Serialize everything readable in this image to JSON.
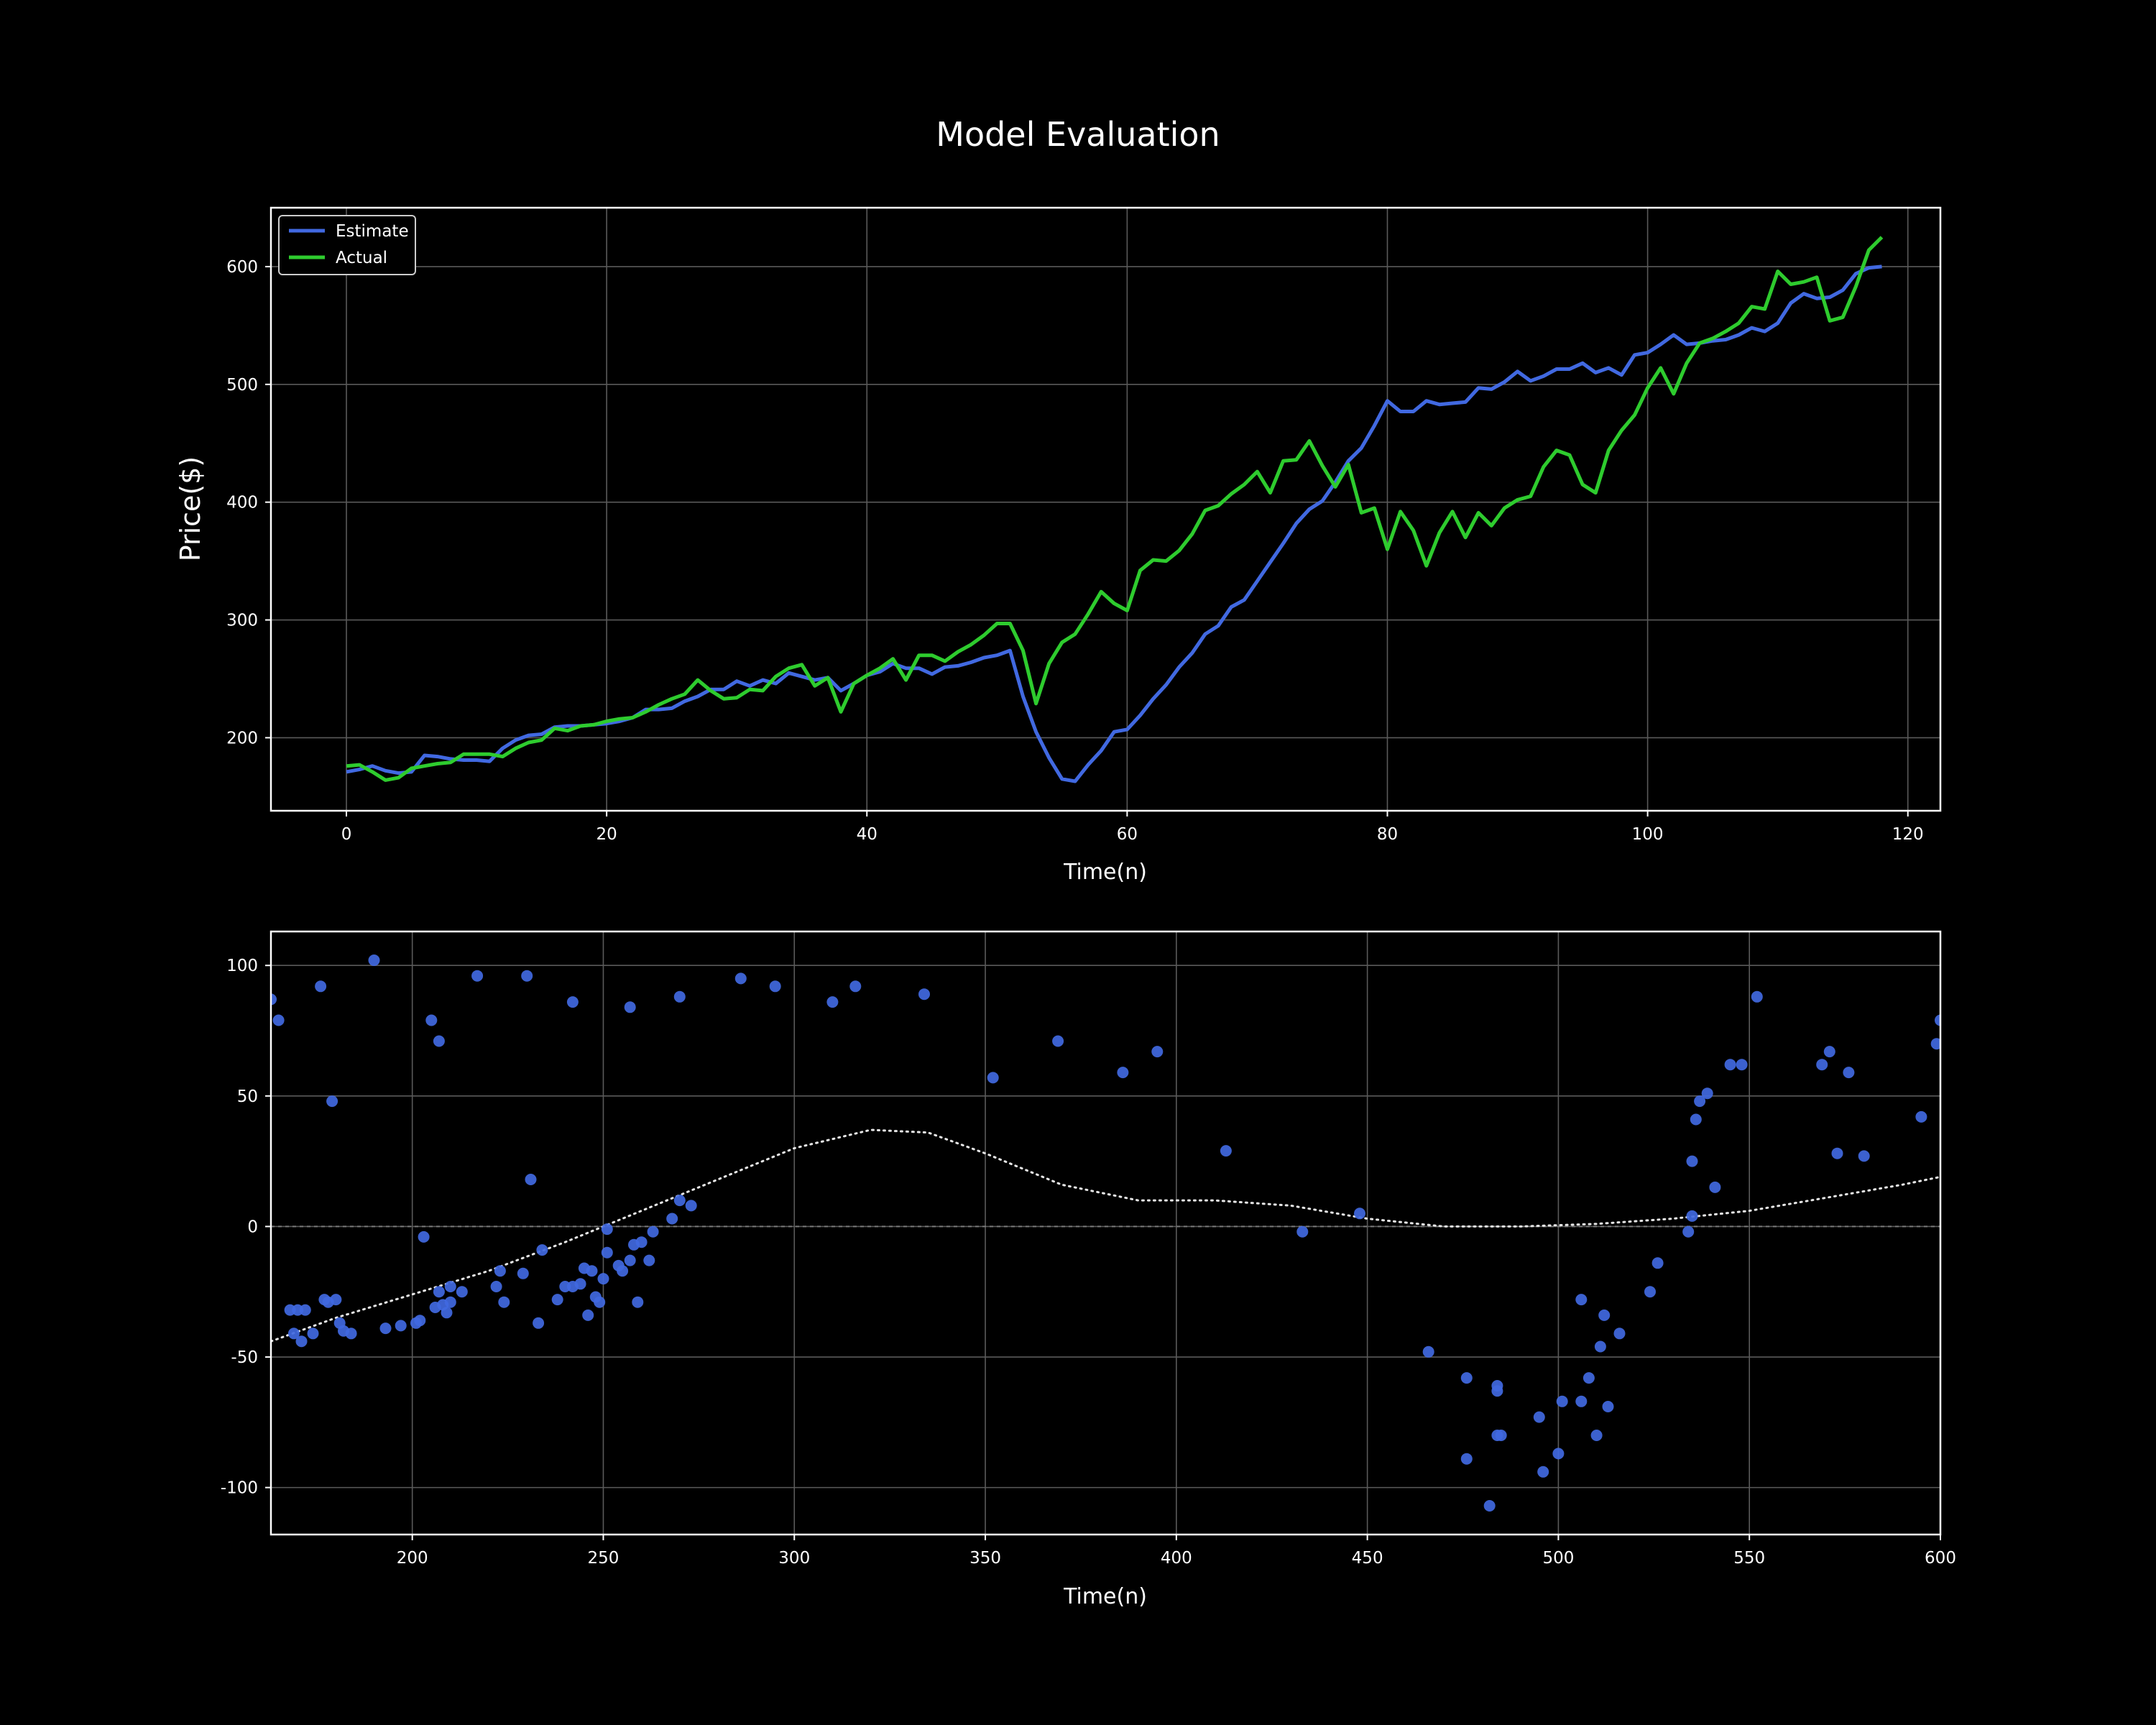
{
  "figure": {
    "title": "Model Evaluation"
  },
  "chart_data": [
    {
      "type": "line",
      "xlabel": "Time(n)",
      "ylabel": "Price($)",
      "xlim": [
        -5.8,
        122.5
      ],
      "ylim": [
        138,
        650
      ],
      "xticks": [
        0,
        20,
        40,
        60,
        80,
        100,
        120
      ],
      "yticks": [
        200,
        300,
        400,
        500,
        600
      ],
      "grid": true,
      "legend": "top-left",
      "series": [
        {
          "name": "Estimate",
          "color": "#4169e1",
          "x_start": 0,
          "values": [
            171,
            173,
            176,
            172,
            170,
            171,
            185,
            184,
            182,
            181,
            181,
            180,
            191,
            198,
            202,
            203,
            209,
            210,
            210,
            211,
            212,
            214,
            217,
            224,
            224,
            225,
            231,
            235,
            241,
            241,
            248,
            244,
            249,
            246,
            255,
            252,
            249,
            251,
            240,
            246,
            253,
            256,
            263,
            259,
            259,
            254,
            260,
            261,
            264,
            268,
            270,
            274,
            235,
            205,
            183,
            165,
            163,
            177,
            189,
            205,
            207,
            219,
            233,
            245,
            260,
            272,
            288,
            295,
            311,
            317,
            333,
            349,
            365,
            382,
            394,
            401,
            417,
            435,
            446,
            465,
            486,
            477,
            477,
            486,
            483,
            484,
            485,
            497,
            496,
            502,
            511,
            503,
            507,
            513,
            513,
            518,
            510,
            514,
            508,
            525,
            527,
            534,
            542,
            534,
            535,
            537,
            538,
            542,
            548,
            545,
            552,
            569,
            577,
            573,
            574,
            580,
            594,
            599,
            600
          ]
        },
        {
          "name": "Actual",
          "color": "#2ecc2e",
          "x_start": 0,
          "values": [
            176,
            177,
            171,
            164,
            166,
            174,
            176,
            178,
            179,
            186,
            186,
            186,
            184,
            191,
            196,
            198,
            208,
            206,
            210,
            211,
            214,
            216,
            217,
            222,
            228,
            233,
            237,
            249,
            240,
            233,
            234,
            241,
            240,
            252,
            259,
            262,
            244,
            251,
            222,
            246,
            253,
            259,
            267,
            249,
            270,
            270,
            265,
            273,
            279,
            287,
            297,
            297,
            274,
            229,
            263,
            281,
            288,
            305,
            324,
            314,
            308,
            342,
            351,
            350,
            359,
            373,
            393,
            397,
            407,
            415,
            426,
            408,
            435,
            436,
            452,
            431,
            413,
            432,
            391,
            395,
            360,
            392,
            376,
            346,
            374,
            392,
            370,
            391,
            380,
            395,
            402,
            405,
            430,
            444,
            440,
            415,
            408,
            444,
            461,
            474,
            497,
            514,
            492,
            518,
            535,
            539,
            545,
            552,
            566,
            564,
            596,
            585,
            587,
            591,
            554,
            557,
            583,
            614,
            625
          ]
        }
      ]
    },
    {
      "type": "scatter",
      "xlabel": "Time(n)",
      "ylabel": "",
      "xlim": [
        163,
        600
      ],
      "ylim": [
        -118,
        113
      ],
      "xticks": [
        200,
        250,
        300,
        350,
        400,
        450,
        500,
        550,
        600
      ],
      "yticks": [
        100,
        50,
        0,
        -50,
        -100
      ],
      "grid": true,
      "zero_line": 0,
      "series": [
        {
          "name": "",
          "color": "#4169e1",
          "points": [
            [
              163,
              87
            ],
            [
              165,
              79
            ],
            [
              168,
              -32
            ],
            [
              169,
              -41
            ],
            [
              170,
              -32
            ],
            [
              171,
              -44
            ],
            [
              172,
              -32
            ],
            [
              174,
              -41
            ],
            [
              176,
              92
            ],
            [
              177,
              -28
            ],
            [
              178,
              -29
            ],
            [
              179,
              48
            ],
            [
              180,
              -28
            ],
            [
              181,
              -37
            ],
            [
              182,
              -40
            ],
            [
              184,
              -41
            ],
            [
              190,
              102
            ],
            [
              193,
              -39
            ],
            [
              197,
              -38
            ],
            [
              201,
              -37
            ],
            [
              202,
              -36
            ],
            [
              203,
              -4
            ],
            [
              205,
              79
            ],
            [
              206,
              -31
            ],
            [
              207,
              -25
            ],
            [
              207,
              71
            ],
            [
              208,
              -30
            ],
            [
              209,
              -33
            ],
            [
              210,
              -23
            ],
            [
              210,
              -29
            ],
            [
              213,
              -25
            ],
            [
              217,
              96
            ],
            [
              222,
              -23
            ],
            [
              223,
              -17
            ],
            [
              224,
              -29
            ],
            [
              229,
              -18
            ],
            [
              230,
              96
            ],
            [
              231,
              18
            ],
            [
              233,
              -37
            ],
            [
              234,
              -9
            ],
            [
              238,
              -28
            ],
            [
              240,
              -23
            ],
            [
              242,
              86
            ],
            [
              242,
              -23
            ],
            [
              244,
              -22
            ],
            [
              245,
              -16
            ],
            [
              246,
              -34
            ],
            [
              247,
              -17
            ],
            [
              248,
              -27
            ],
            [
              249,
              -29
            ],
            [
              250,
              -20
            ],
            [
              251,
              -10
            ],
            [
              251,
              -1
            ],
            [
              254,
              -15
            ],
            [
              255,
              -17
            ],
            [
              257,
              84
            ],
            [
              257,
              -13
            ],
            [
              258,
              -7
            ],
            [
              259,
              -29
            ],
            [
              260,
              -6
            ],
            [
              262,
              -13
            ],
            [
              263,
              -2
            ],
            [
              268,
              3
            ],
            [
              270,
              88
            ],
            [
              270,
              10
            ],
            [
              273,
              8
            ],
            [
              286,
              95
            ],
            [
              295,
              92
            ],
            [
              310,
              86
            ],
            [
              316,
              92
            ],
            [
              334,
              89
            ],
            [
              352,
              57
            ],
            [
              369,
              71
            ],
            [
              386,
              59
            ],
            [
              395,
              67
            ],
            [
              413,
              29
            ],
            [
              433,
              -2
            ],
            [
              448,
              5
            ],
            [
              466,
              -48
            ],
            [
              476,
              -89
            ],
            [
              476,
              -58
            ],
            [
              482,
              -107
            ],
            [
              484,
              -80
            ],
            [
              484,
              -63
            ],
            [
              484,
              -61
            ],
            [
              485,
              -80
            ],
            [
              495,
              -73
            ],
            [
              496,
              -94
            ],
            [
              500,
              -87
            ],
            [
              501,
              -67
            ],
            [
              506,
              -28
            ],
            [
              506,
              -67
            ],
            [
              508,
              -58
            ],
            [
              510,
              -80
            ],
            [
              511,
              -46
            ],
            [
              512,
              -34
            ],
            [
              513,
              -69
            ],
            [
              516,
              -41
            ],
            [
              524,
              -25
            ],
            [
              526,
              -14
            ],
            [
              534,
              -2
            ],
            [
              535,
              4
            ],
            [
              535,
              25
            ],
            [
              536,
              41
            ],
            [
              537,
              48
            ],
            [
              539,
              51
            ],
            [
              541,
              15
            ],
            [
              545,
              62
            ],
            [
              548,
              62
            ],
            [
              552,
              88
            ],
            [
              569,
              62
            ],
            [
              571,
              67
            ],
            [
              573,
              28
            ],
            [
              576,
              59
            ],
            [
              580,
              27
            ],
            [
              595,
              42
            ],
            [
              599,
              70
            ],
            [
              600,
              79
            ]
          ]
        }
      ],
      "trend": {
        "style": "dotted",
        "color": "#e6e6e6",
        "x": [
          163,
          180,
          200,
          220,
          240,
          260,
          280,
          300,
          320,
          335,
          350,
          370,
          390,
          410,
          430,
          450,
          470,
          490,
          510,
          530,
          550,
          570,
          590,
          600
        ],
        "y": [
          -44,
          -35,
          -26,
          -17,
          -6,
          6,
          18,
          30,
          37,
          36,
          28,
          16,
          10,
          10,
          8,
          3,
          0,
          0,
          1,
          3,
          6,
          11,
          16,
          19
        ]
      }
    }
  ]
}
